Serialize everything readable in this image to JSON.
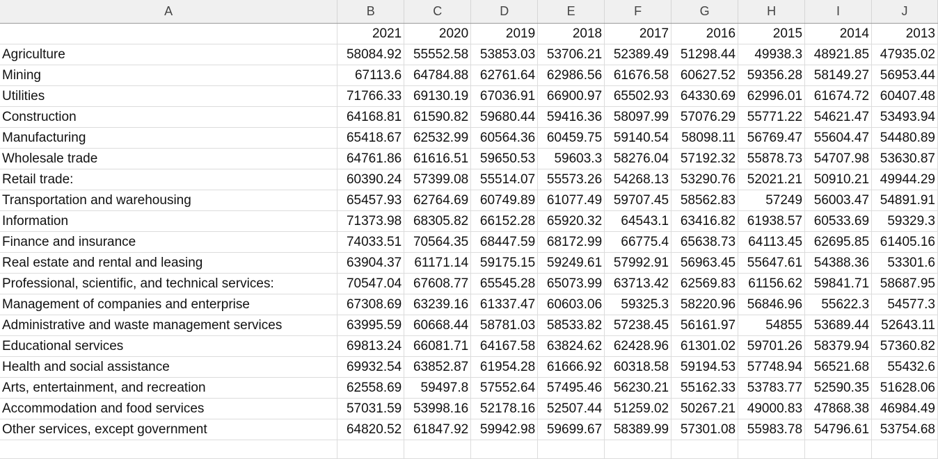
{
  "columns": [
    "A",
    "B",
    "C",
    "D",
    "E",
    "F",
    "G",
    "H",
    "I",
    "J"
  ],
  "years": [
    "2021",
    "2020",
    "2019",
    "2018",
    "2017",
    "2016",
    "2015",
    "2014",
    "2013"
  ],
  "rows": [
    {
      "label": "Agriculture",
      "values": [
        "58084.92",
        "55552.58",
        "53853.03",
        "53706.21",
        "52389.49",
        "51298.44",
        "49938.3",
        "48921.85",
        "47935.02"
      ]
    },
    {
      "label": "Mining",
      "values": [
        "67113.6",
        "64784.88",
        "62761.64",
        "62986.56",
        "61676.58",
        "60627.52",
        "59356.28",
        "58149.27",
        "56953.44"
      ]
    },
    {
      "label": "Utilities",
      "values": [
        "71766.33",
        "69130.19",
        "67036.91",
        "66900.97",
        "65502.93",
        "64330.69",
        "62996.01",
        "61674.72",
        "60407.48"
      ]
    },
    {
      "label": "Construction",
      "values": [
        "64168.81",
        "61590.82",
        "59680.44",
        "59416.36",
        "58097.99",
        "57076.29",
        "55771.22",
        "54621.47",
        "53493.94"
      ]
    },
    {
      "label": "Manufacturing",
      "values": [
        "65418.67",
        "62532.99",
        "60564.36",
        "60459.75",
        "59140.54",
        "58098.11",
        "56769.47",
        "55604.47",
        "54480.89"
      ]
    },
    {
      "label": "Wholesale trade",
      "values": [
        "64761.86",
        "61616.51",
        "59650.53",
        "59603.3",
        "58276.04",
        "57192.32",
        "55878.73",
        "54707.98",
        "53630.87"
      ]
    },
    {
      "label": "Retail trade:",
      "values": [
        "60390.24",
        "57399.08",
        "55514.07",
        "55573.26",
        "54268.13",
        "53290.76",
        "52021.21",
        "50910.21",
        "49944.29"
      ]
    },
    {
      "label": "Transportation and warehousing",
      "values": [
        "65457.93",
        "62764.69",
        "60749.89",
        "61077.49",
        "59707.45",
        "58562.83",
        "57249",
        "56003.47",
        "54891.91"
      ]
    },
    {
      "label": "Information",
      "values": [
        "71373.98",
        "68305.82",
        "66152.28",
        "65920.32",
        "64543.1",
        "63416.82",
        "61938.57",
        "60533.69",
        "59329.3"
      ]
    },
    {
      "label": "Finance and insurance",
      "values": [
        "74033.51",
        "70564.35",
        "68447.59",
        "68172.99",
        "66775.4",
        "65638.73",
        "64113.45",
        "62695.85",
        "61405.16"
      ]
    },
    {
      "label": "Real estate and rental and leasing",
      "values": [
        "63904.37",
        "61171.14",
        "59175.15",
        "59249.61",
        "57992.91",
        "56963.45",
        "55647.61",
        "54388.36",
        "53301.6"
      ]
    },
    {
      "label": "Professional, scientific, and technical services:",
      "values": [
        "70547.04",
        "67608.77",
        "65545.28",
        "65073.99",
        "63713.42",
        "62569.83",
        "61156.62",
        "59841.71",
        "58687.95"
      ]
    },
    {
      "label": "Management of companies and enterprise",
      "values": [
        "67308.69",
        "63239.16",
        "61337.47",
        "60603.06",
        "59325.3",
        "58220.96",
        "56846.96",
        "55622.3",
        "54577.3"
      ]
    },
    {
      "label": "Administrative and waste management services",
      "values": [
        "63995.59",
        "60668.44",
        "58781.03",
        "58533.82",
        "57238.45",
        "56161.97",
        "54855",
        "53689.44",
        "52643.11"
      ]
    },
    {
      "label": "Educational services",
      "values": [
        "69813.24",
        "66081.71",
        "64167.58",
        "63824.62",
        "62428.96",
        "61301.02",
        "59701.26",
        "58379.94",
        "57360.82"
      ]
    },
    {
      "label": "Health and social assistance",
      "values": [
        "69932.54",
        "63852.87",
        "61954.28",
        "61666.92",
        "60318.58",
        "59194.53",
        "57748.94",
        "56521.68",
        "55432.6"
      ]
    },
    {
      "label": "Arts, entertainment, and recreation",
      "values": [
        "62558.69",
        "59497.8",
        "57552.64",
        "57495.46",
        "56230.21",
        "55162.33",
        "53783.77",
        "52590.35",
        "51628.06"
      ]
    },
    {
      "label": "Accommodation and food services",
      "values": [
        "57031.59",
        "53998.16",
        "52178.16",
        "52507.44",
        "51259.02",
        "50267.21",
        "49000.83",
        "47868.38",
        "46984.49"
      ]
    },
    {
      "label": "Other services, except government",
      "values": [
        "64820.52",
        "61847.92",
        "59942.98",
        "59699.67",
        "58389.99",
        "57301.08",
        "55983.78",
        "54796.61",
        "53754.68"
      ]
    }
  ]
}
